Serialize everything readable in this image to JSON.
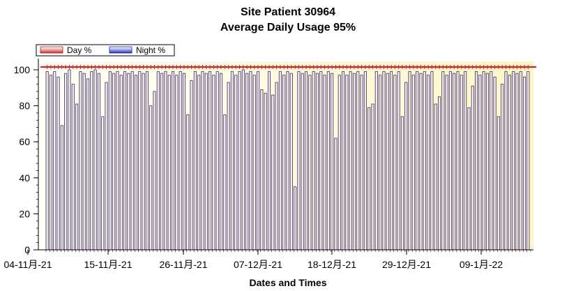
{
  "chart_data": {
    "type": "bar",
    "title": "Site Patient 30964",
    "subtitle": "Average Daily Usage 95%",
    "xlabel": "Dates and Times",
    "ylabel": "",
    "ylim": [
      0,
      100
    ],
    "yticks": [
      0,
      20,
      40,
      60,
      80,
      100
    ],
    "x_tick_labels": [
      "04-11月-21",
      "15-11月-21",
      "26-11月-21",
      "07-12月-21",
      "18-12月-21",
      "29-12月-21",
      "09-1月-22"
    ],
    "legend": {
      "position": "top-left",
      "entries": [
        "Day %",
        "Night %"
      ]
    },
    "colors": {
      "day": "#cc3333",
      "night": "#2233bb",
      "plot_bg": "#fffbe3",
      "reference_line": "#cc2222"
    },
    "reference_line_value": 100,
    "series": [
      {
        "name": "Day %",
        "values": []
      },
      {
        "name": "Night %",
        "values": [
          99,
          97,
          99,
          96,
          69,
          98,
          100,
          92,
          81,
          99,
          98,
          95,
          99,
          100,
          98,
          74,
          93,
          99,
          98,
          99,
          97,
          99,
          98,
          99,
          97,
          99,
          98,
          99,
          80,
          88,
          99,
          98,
          99,
          97,
          99,
          97,
          99,
          98,
          75,
          94,
          99,
          97,
          99,
          98,
          99,
          97,
          99,
          98,
          75,
          93,
          99,
          97,
          99,
          100,
          98,
          99,
          97,
          99,
          89,
          87,
          99,
          86,
          93,
          99,
          97,
          99,
          98,
          35,
          99,
          98,
          99,
          97,
          99,
          98,
          99,
          97,
          99,
          98,
          62,
          97,
          99,
          97,
          99,
          98,
          99,
          97,
          99,
          79,
          81,
          99,
          97,
          99,
          98,
          99,
          97,
          99,
          74,
          93,
          99,
          97,
          99,
          98,
          99,
          97,
          99,
          81,
          85,
          99,
          97,
          99,
          98,
          99,
          97,
          99,
          79,
          91,
          99,
          97,
          99,
          98,
          99,
          96,
          74,
          92,
          99,
          97,
          99,
          98,
          99,
          96,
          99
        ]
      }
    ]
  }
}
